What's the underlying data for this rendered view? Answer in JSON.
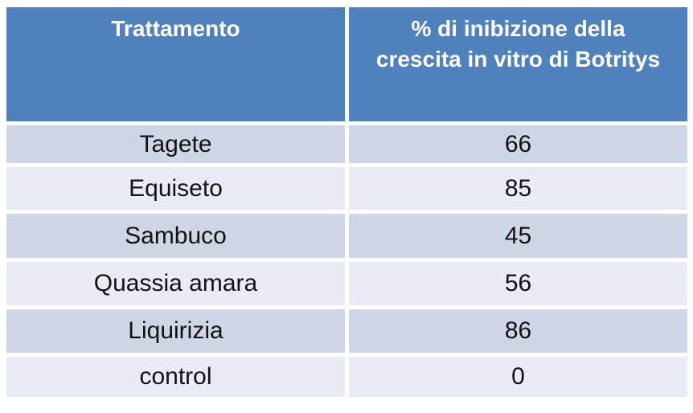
{
  "table": {
    "headers": [
      "Trattamento",
      "% di inibizione della\ncrescita in vitro di Botritys"
    ],
    "rows": [
      {
        "treatment": "Tagete",
        "value": "66"
      },
      {
        "treatment": "Equiseto",
        "value": "85"
      },
      {
        "treatment": "Sambuco",
        "value": "45"
      },
      {
        "treatment": "Quassia amara",
        "value": "56"
      },
      {
        "treatment": "Liquirizia",
        "value": "86"
      },
      {
        "treatment": "control",
        "value": "0"
      }
    ],
    "colors": {
      "header_bg": "#4f81bd",
      "header_text": "#ffffff",
      "band_dark": "#cfd6e6",
      "band_light": "#e9ecf5",
      "row_text": "#121212",
      "gap": "#ffffff"
    }
  },
  "chart_data": {
    "type": "table",
    "title": "",
    "columns": [
      "Trattamento",
      "% di inibizione della crescita in vitro di Botritys"
    ],
    "rows": [
      [
        "Tagete",
        66
      ],
      [
        "Equiseto",
        85
      ],
      [
        "Sambuco",
        45
      ],
      [
        "Quassia amara",
        56
      ],
      [
        "Liquirizia",
        86
      ],
      [
        "control",
        0
      ]
    ]
  }
}
